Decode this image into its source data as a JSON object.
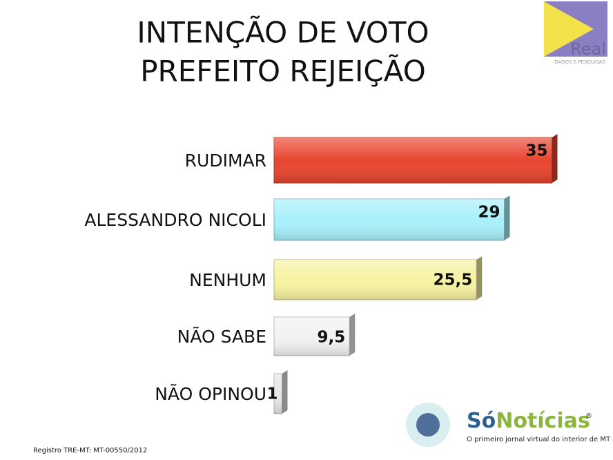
{
  "chart_data": {
    "type": "bar",
    "orientation": "horizontal",
    "title": [
      "INTENÇÃO DE VOTO",
      "PREFEITO REJEIÇÃO"
    ],
    "categories": [
      "RUDIMAR",
      "ALESSANDRO NICOLI",
      "NENHUM",
      "NÃO SABE",
      "NÃO OPINOU"
    ],
    "values": [
      35,
      29,
      25.5,
      9.5,
      1
    ],
    "value_labels": [
      "35",
      "29",
      "25,5",
      "9,5",
      "1"
    ],
    "colors": [
      "#e8452f",
      "#a8f0fb",
      "#f7f3a2",
      "#f2f2f2",
      "#e6e6e6"
    ]
  },
  "logo_top": {
    "name": "Real",
    "tagline": "DADOS E PESQUISAS"
  },
  "logo_bottom": {
    "name_part1": "Só",
    "name_part2": "Notícias",
    "mark": "®",
    "tagline": "O primeiro jornal virtual do interior de MT"
  },
  "footnote": "Registro TRE-MT: MT-00550/2012"
}
